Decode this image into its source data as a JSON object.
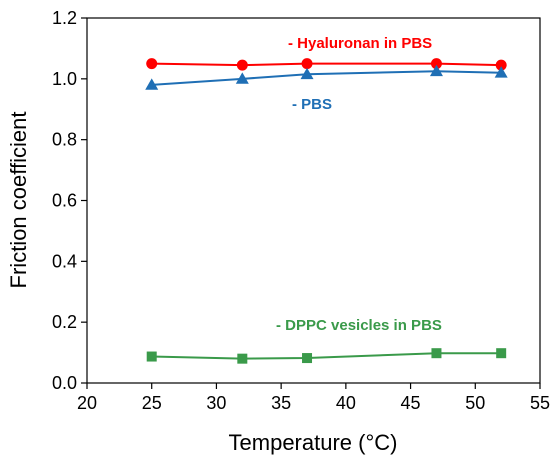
{
  "chart_data": {
    "type": "line",
    "xlabel": "Temperature (°C)",
    "ylabel": "Friction coefficient",
    "xlim": [
      20,
      55
    ],
    "ylim": [
      0,
      1.2
    ],
    "xticks": [
      "20",
      "25",
      "30",
      "35",
      "40",
      "45",
      "50",
      "55"
    ],
    "yticks": [
      "0.0",
      "0.2",
      "0.4",
      "0.6",
      "0.8",
      "1.0",
      "1.2"
    ],
    "grid": false,
    "series": [
      {
        "name": "Hyaluronan in PBS",
        "annotation": "- Hyaluronan in PBS",
        "color": "#ff0000",
        "marker": "circle",
        "x": [
          25,
          32,
          37,
          47,
          52
        ],
        "y": [
          1.05,
          1.045,
          1.05,
          1.05,
          1.045
        ]
      },
      {
        "name": "PBS",
        "annotation": "-  PBS",
        "color": "#1f6fb5",
        "marker": "triangle",
        "x": [
          25,
          32,
          37,
          47,
          52
        ],
        "y": [
          0.98,
          1.0,
          1.015,
          1.025,
          1.02
        ]
      },
      {
        "name": "DPPC vesicles in PBS",
        "annotation": "-  DPPC vesicles in PBS",
        "color": "#3a9a4a",
        "marker": "square",
        "x": [
          25,
          32,
          37,
          47,
          52
        ],
        "y": [
          0.087,
          0.08,
          0.082,
          0.098,
          0.098
        ]
      }
    ]
  }
}
